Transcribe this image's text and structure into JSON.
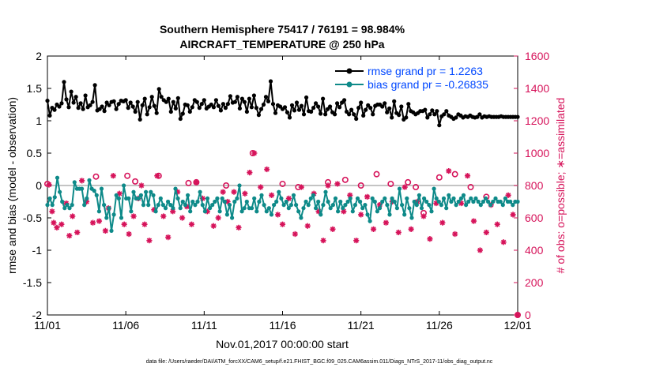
{
  "chart_data": {
    "type": "line",
    "title": "Southern Hemisphere 75417 / 76191 = 98.984%",
    "subtitle": "AIRCRAFT_TEMPERATURE @ 250 hPa",
    "xlabel": "Nov.01,2017 00:00:00 start",
    "ylabel": "rmse and bias (model - observation)",
    "y2label": "# of obs: o=possible; ∗=assimilated",
    "footer": "data file: /Users/raeder/DAI/ATM_forcXX/CAM6_setup/f.e21.FHIST_BGC.f09_025.CAM6assim.011/Diags_NTrS_2017-11/obs_diag_output.nc",
    "x_ticks": [
      "11/01",
      "11/06",
      "11/11",
      "11/16",
      "11/21",
      "11/26",
      "12/01"
    ],
    "y_ticks": [
      "-2",
      "-1.5",
      "-1",
      "-0.5",
      "0",
      "0.5",
      "1",
      "1.5",
      "2"
    ],
    "y2_ticks": [
      "0",
      "200",
      "400",
      "600",
      "800",
      "1000",
      "1200",
      "1400",
      "1600"
    ],
    "xlim": [
      0,
      30
    ],
    "ylim": [
      -2,
      2
    ],
    "y2lim": [
      0,
      1600
    ],
    "colors": {
      "rmse": "#000000",
      "bias": "#0e8a89",
      "obs": "#d6135a",
      "legend_text": "#0047ff",
      "zero_line": "#b0b0b0"
    },
    "legend": {
      "placement": "top-right",
      "entries": [
        "rmse grand pr = 1.2263",
        "bias grand pr = -0.26835"
      ]
    },
    "series": [
      {
        "name": "rmse grand pr = 1.2263",
        "values": [
          1.31,
          1.08,
          1.2,
          1.17,
          1.25,
          1.22,
          1.27,
          1.6,
          1.33,
          1.21,
          1.45,
          1.28,
          1.37,
          1.2,
          1.27,
          1.18,
          1.39,
          1.21,
          1.24,
          1.29,
          1.55,
          1.16,
          1.18,
          1.22,
          1.15,
          1.28,
          1.24,
          1.29,
          1.3,
          1.18,
          1.26,
          1.31,
          1.3,
          1.32,
          1.2,
          1.28,
          1.22,
          1.14,
          1.29,
          1.02,
          1.24,
          1.34,
          1.1,
          1.21,
          1.37,
          1.23,
          1.12,
          1.49,
          1.37,
          1.32,
          1.29,
          1.34,
          1.14,
          1.29,
          1.19,
          1.35,
          1.03,
          1.11,
          1.25,
          1.24,
          1.14,
          1.21,
          1.32,
          1.29,
          1.2,
          1.26,
          1.32,
          1.19,
          1.22,
          1.25,
          1.21,
          1.32,
          1.23,
          1.16,
          1.26,
          1.2,
          1.26,
          1.38,
          1.28,
          1.29,
          1.37,
          1.19,
          1.34,
          1.29,
          1.14,
          1.34,
          1.21,
          1.39,
          1.2,
          1.09,
          1.18,
          1.25,
          1.37,
          1.3,
          1.61,
          1.26,
          1.12,
          1.24,
          1.22,
          1.18,
          1.21,
          1.13,
          1.05,
          1.24,
          1.16,
          1.28,
          1.17,
          1.23,
          1.1,
          1.36,
          1.15,
          1.14,
          1.2,
          1.27,
          1.22,
          1.11,
          1.34,
          1.1,
          1.18,
          1.22,
          1.13,
          1.1,
          1.27,
          1.21,
          1.28,
          1.32,
          1.14,
          1.1,
          1.17,
          1.1,
          1.03,
          1.2,
          1.28,
          1.08,
          1.17,
          1.24,
          1.2,
          1.1,
          1.23,
          1.25,
          1.25,
          1.22,
          1.27,
          1.13,
          1.19,
          1.05,
          1.3,
          1.12,
          1.09,
          1.22,
          1.02,
          1.05,
          1.26,
          1.15,
          1.13,
          1.1,
          1.12,
          1.15,
          1.15,
          1.17,
          1.05,
          1.1,
          1.16,
          1.1,
          1.15,
          0.93,
          1.07,
          1.1,
          1.15,
          1.08,
          1.06,
          1.03,
          1.05,
          1.1,
          1.08,
          1.05,
          1.07,
          1.06,
          1.08,
          1.06,
          1.05,
          1.06,
          1.1,
          1.05,
          1.07,
          1.06,
          1.07,
          1.06,
          1.06,
          1.06,
          1.06,
          1.07,
          1.06,
          1.06,
          1.06,
          1.06,
          1.06,
          1.06,
          1.06
        ]
      },
      {
        "name": "bias grand pr = -0.26835",
        "values": [
          -0.3,
          -0.2,
          -0.3,
          -0.18,
          0.12,
          -0.1,
          -0.25,
          -0.35,
          -0.3,
          -0.35,
          -0.3,
          0.05,
          -0.05,
          -0.05,
          -0.05,
          -0.3,
          -0.2,
          0.08,
          -0.05,
          -0.08,
          -0.15,
          -0.4,
          -0.05,
          -0.3,
          -0.5,
          -0.35,
          -0.7,
          -0.45,
          -0.15,
          -0.2,
          -0.5,
          0.0,
          -0.2,
          -0.2,
          -0.4,
          -0.1,
          -0.2,
          -0.2,
          -0.15,
          -0.3,
          -0.1,
          -0.3,
          -0.1,
          -0.15,
          -0.4,
          -0.3,
          -0.2,
          -0.3,
          -0.35,
          -0.25,
          -0.3,
          -0.35,
          -0.05,
          -0.2,
          -0.35,
          -0.25,
          -0.3,
          -0.15,
          -0.4,
          -0.25,
          -0.3,
          -0.25,
          -0.1,
          -0.3,
          -0.4,
          -0.2,
          -0.35,
          -0.3,
          -0.25,
          -0.2,
          -0.4,
          -0.2,
          -0.25,
          -0.45,
          -0.3,
          -0.5,
          -0.25,
          -0.2,
          0.0,
          -0.4,
          -0.35,
          -0.25,
          -0.35,
          -0.35,
          -0.2,
          -0.4,
          -0.25,
          -0.15,
          -0.3,
          -0.4,
          -0.35,
          -0.45,
          -0.3,
          -0.25,
          -0.1,
          -0.2,
          -0.3,
          -0.25,
          -0.35,
          -0.3,
          -0.15,
          -0.3,
          -0.4,
          -0.5,
          -0.35,
          -0.25,
          -0.3,
          -0.2,
          -0.15,
          -0.35,
          -0.25,
          -0.45,
          -0.3,
          -0.1,
          -0.25,
          -0.35,
          -0.3,
          -0.2,
          -0.4,
          -0.25,
          -0.35,
          -0.3,
          -0.25,
          -0.2,
          -0.4,
          -0.3,
          -0.2,
          -0.25,
          -0.35,
          -0.3,
          -0.45,
          -0.55,
          -0.2,
          -0.25,
          -0.4,
          -0.35,
          -0.25,
          -0.2,
          -0.3,
          -0.45,
          -0.2,
          -0.25,
          -0.35,
          -0.05,
          -0.3,
          -0.45,
          -0.2,
          -0.35,
          -0.5,
          -0.25,
          -0.3,
          -0.15,
          -0.35,
          -0.2,
          -0.25,
          -0.3,
          -0.4,
          -0.05,
          -0.2,
          -0.25,
          -0.3,
          -0.2,
          -0.35,
          -0.15,
          -0.25,
          -0.2,
          -0.3,
          -0.25,
          -0.2,
          -0.15,
          -0.3,
          -0.25,
          -0.2,
          -0.25,
          -0.2,
          -0.25,
          -0.3,
          -0.25,
          -0.2,
          -0.25,
          -0.3,
          -0.25,
          -0.2,
          -0.25,
          -0.25,
          -0.3,
          -0.2,
          -0.25,
          -0.25,
          -0.3,
          -0.25,
          -0.25
        ]
      }
    ],
    "obs_possible": {
      "marker": "o",
      "points": [
        [
          0,
          810
        ],
        [
          3.1,
          855
        ],
        [
          5.1,
          860
        ],
        [
          5.6,
          825
        ],
        [
          7.1,
          860
        ],
        [
          9.0,
          815
        ],
        [
          9.5,
          820
        ],
        [
          11.4,
          800
        ],
        [
          13.1,
          1000
        ],
        [
          15.0,
          810
        ],
        [
          16.0,
          790
        ],
        [
          17.9,
          820
        ],
        [
          19.0,
          835
        ],
        [
          20.0,
          800
        ],
        [
          21.0,
          870
        ],
        [
          21.9,
          810
        ],
        [
          23.0,
          820
        ],
        [
          23.5,
          790
        ],
        [
          24.0,
          630
        ],
        [
          25.0,
          850
        ],
        [
          26.0,
          870
        ],
        [
          27.0,
          790
        ],
        [
          28.0,
          730
        ],
        [
          30.0,
          0
        ]
      ]
    },
    "obs_assimilated": {
      "marker": "*",
      "points": [
        [
          0.1,
          805
        ],
        [
          0.3,
          640
        ],
        [
          0.4,
          570
        ],
        [
          0.6,
          540
        ],
        [
          0.9,
          560
        ],
        [
          1.2,
          690
        ],
        [
          1.4,
          490
        ],
        [
          1.6,
          610
        ],
        [
          1.9,
          510
        ],
        [
          2.2,
          830
        ],
        [
          2.5,
          700
        ],
        [
          2.9,
          570
        ],
        [
          3.3,
          580
        ],
        [
          3.7,
          520
        ],
        [
          3.9,
          660
        ],
        [
          4.2,
          860
        ],
        [
          4.6,
          750
        ],
        [
          4.9,
          560
        ],
        [
          5.2,
          500
        ],
        [
          5.5,
          610
        ],
        [
          5.8,
          720
        ],
        [
          6.0,
          800
        ],
        [
          6.2,
          560
        ],
        [
          6.5,
          460
        ],
        [
          6.8,
          650
        ],
        [
          7.0,
          860
        ],
        [
          7.4,
          610
        ],
        [
          7.7,
          480
        ],
        [
          8.0,
          640
        ],
        [
          8.3,
          760
        ],
        [
          8.6,
          600
        ],
        [
          8.9,
          670
        ],
        [
          9.2,
          560
        ],
        [
          9.5,
          820
        ],
        [
          9.9,
          720
        ],
        [
          10.2,
          640
        ],
        [
          10.6,
          550
        ],
        [
          10.9,
          600
        ],
        [
          11.2,
          760
        ],
        [
          11.5,
          700
        ],
        [
          11.9,
          760
        ],
        [
          12.2,
          540
        ],
        [
          12.6,
          750
        ],
        [
          12.9,
          880
        ],
        [
          13.2,
          1000
        ],
        [
          13.6,
          790
        ],
        [
          14.0,
          900
        ],
        [
          14.3,
          740
        ],
        [
          14.7,
          620
        ],
        [
          15.0,
          560
        ],
        [
          15.4,
          720
        ],
        [
          15.8,
          500
        ],
        [
          16.2,
          790
        ],
        [
          16.6,
          550
        ],
        [
          17.0,
          750
        ],
        [
          17.3,
          640
        ],
        [
          17.6,
          460
        ],
        [
          17.9,
          800
        ],
        [
          18.2,
          530
        ],
        [
          18.5,
          810
        ],
        [
          18.9,
          640
        ],
        [
          19.3,
          740
        ],
        [
          19.7,
          460
        ],
        [
          20.0,
          620
        ],
        [
          20.4,
          730
        ],
        [
          20.8,
          530
        ],
        [
          21.2,
          680
        ],
        [
          21.6,
          570
        ],
        [
          22.0,
          700
        ],
        [
          22.4,
          510
        ],
        [
          22.8,
          790
        ],
        [
          23.2,
          530
        ],
        [
          23.6,
          700
        ],
        [
          24.0,
          610
        ],
        [
          24.4,
          470
        ],
        [
          24.8,
          690
        ],
        [
          25.2,
          570
        ],
        [
          25.6,
          890
        ],
        [
          26.0,
          500
        ],
        [
          26.4,
          690
        ],
        [
          26.8,
          860
        ],
        [
          27.2,
          580
        ],
        [
          27.6,
          400
        ],
        [
          28.0,
          510
        ],
        [
          28.3,
          680
        ],
        [
          28.7,
          560
        ],
        [
          29.1,
          450
        ],
        [
          29.4,
          740
        ],
        [
          29.7,
          620
        ],
        [
          30.0,
          0
        ]
      ]
    }
  }
}
